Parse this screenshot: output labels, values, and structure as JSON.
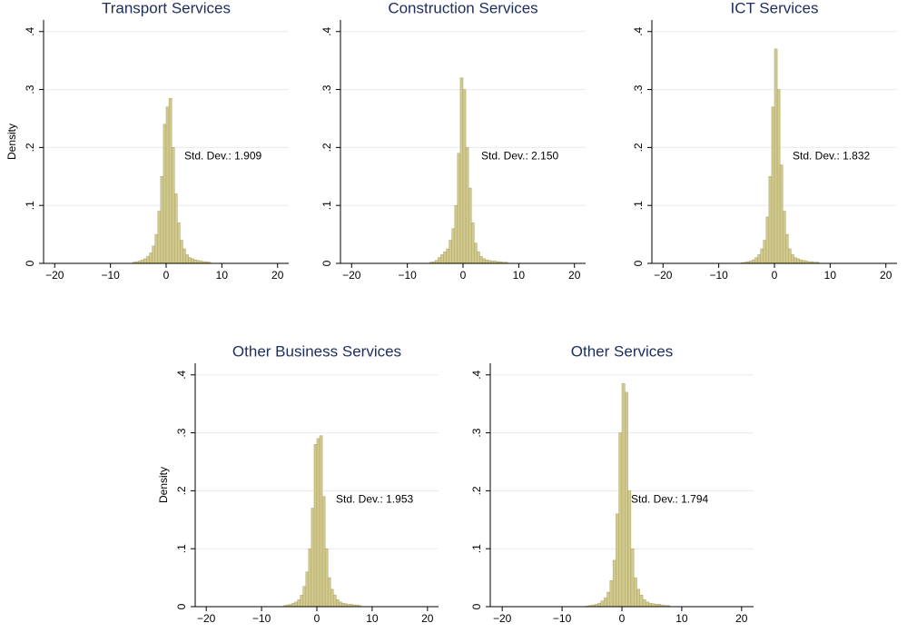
{
  "chart_data": [
    {
      "type": "histogram",
      "title": "Transport Services",
      "ylabel": "Density",
      "annotation": "Std. Dev.: 1.909",
      "color": "#d2ca8c",
      "bins": [
        -6,
        -5.5,
        -5,
        -4.5,
        -4,
        -3.5,
        -3,
        -2.5,
        -2,
        -1.5,
        -1,
        -0.5,
        0,
        0.5,
        1,
        1.5,
        2,
        2.5,
        3,
        3.5,
        4,
        4.5,
        5,
        5.5,
        6,
        6.5,
        7,
        7.5,
        8
      ],
      "values": [
        0.002,
        0.003,
        0.004,
        0.006,
        0.008,
        0.012,
        0.018,
        0.03,
        0.05,
        0.09,
        0.15,
        0.24,
        0.27,
        0.285,
        0.2,
        0.12,
        0.07,
        0.04,
        0.025,
        0.015,
        0.01,
        0.008,
        0.006,
        0.005,
        0.004,
        0.003,
        0.003,
        0.002
      ],
      "xlim": [
        -22,
        22
      ],
      "ylim": [
        0,
        0.42
      ],
      "xticks": [
        {
          "value": -20,
          "label": "−20"
        },
        {
          "value": -10,
          "label": "−10"
        },
        0,
        10,
        20
      ],
      "yticks": [
        0,
        {
          "value": 0.1,
          "label": ".1"
        },
        {
          "value": 0.2,
          "label": ".2"
        },
        {
          "value": 0.3,
          "label": ".3"
        },
        {
          "value": 0.4,
          "label": ".4"
        }
      ],
      "grid": true
    },
    {
      "type": "histogram",
      "title": "Construction Services",
      "annotation": "Std. Dev.: 2.150",
      "color": "#d2ca8c",
      "bins": [
        -6,
        -5.5,
        -5,
        -4.5,
        -4,
        -3.5,
        -3,
        -2.5,
        -2,
        -1.5,
        -1,
        -0.5,
        0,
        0.5,
        1,
        1.5,
        2,
        2.5,
        3,
        3.5,
        4,
        4.5,
        5,
        5.5,
        6,
        6.5,
        7,
        7.5,
        8
      ],
      "values": [
        0.002,
        0.003,
        0.005,
        0.01,
        0.015,
        0.02,
        0.025,
        0.04,
        0.06,
        0.1,
        0.19,
        0.32,
        0.3,
        0.2,
        0.13,
        0.07,
        0.035,
        0.02,
        0.012,
        0.008,
        0.006,
        0.005,
        0.004,
        0.004,
        0.003,
        0.003,
        0.002,
        0.002
      ],
      "xlim": [
        -22,
        22
      ],
      "ylim": [
        0,
        0.42
      ],
      "xticks": [
        {
          "value": -20,
          "label": "−20"
        },
        {
          "value": -10,
          "label": "−10"
        },
        0,
        10,
        20
      ],
      "yticks": [
        0,
        {
          "value": 0.1,
          "label": ".1"
        },
        {
          "value": 0.2,
          "label": ".2"
        },
        {
          "value": 0.3,
          "label": ".3"
        },
        {
          "value": 0.4,
          "label": ".4"
        }
      ],
      "grid": true
    },
    {
      "type": "histogram",
      "title": "ICT Services",
      "annotation": "Std. Dev.: 1.832",
      "color": "#d2ca8c",
      "bins": [
        -6,
        -5.5,
        -5,
        -4.5,
        -4,
        -3.5,
        -3,
        -2.5,
        -2,
        -1.5,
        -1,
        -0.5,
        0,
        0.5,
        1,
        1.5,
        2,
        2.5,
        3,
        3.5,
        4,
        4.5,
        5,
        5.5,
        6,
        6.5,
        7,
        7.5,
        8
      ],
      "values": [
        0.001,
        0.002,
        0.003,
        0.004,
        0.006,
        0.01,
        0.015,
        0.025,
        0.04,
        0.08,
        0.15,
        0.27,
        0.37,
        0.3,
        0.17,
        0.09,
        0.05,
        0.025,
        0.015,
        0.01,
        0.008,
        0.006,
        0.005,
        0.004,
        0.003,
        0.003,
        0.002,
        0.002
      ],
      "xlim": [
        -22,
        22
      ],
      "ylim": [
        0,
        0.42
      ],
      "xticks": [
        {
          "value": -20,
          "label": "−20"
        },
        {
          "value": -10,
          "label": "−10"
        },
        0,
        10,
        20
      ],
      "yticks": [
        0,
        {
          "value": 0.1,
          "label": ".1"
        },
        {
          "value": 0.2,
          "label": ".2"
        },
        {
          "value": 0.3,
          "label": ".3"
        },
        {
          "value": 0.4,
          "label": ".4"
        }
      ],
      "grid": true
    },
    {
      "type": "histogram",
      "title": "Other Business Services",
      "ylabel": "Density",
      "annotation": "Std. Dev.: 1.953",
      "color": "#d2ca8c",
      "bins": [
        -6,
        -5.5,
        -5,
        -4.5,
        -4,
        -3.5,
        -3,
        -2.5,
        -2,
        -1.5,
        -1,
        -0.5,
        0,
        0.5,
        1,
        1.5,
        2,
        2.5,
        3,
        3.5,
        4,
        4.5,
        5,
        5.5,
        6,
        6.5,
        7,
        7.5,
        8
      ],
      "values": [
        0.002,
        0.003,
        0.004,
        0.006,
        0.008,
        0.012,
        0.02,
        0.035,
        0.06,
        0.1,
        0.17,
        0.28,
        0.29,
        0.295,
        0.19,
        0.1,
        0.05,
        0.03,
        0.02,
        0.012,
        0.008,
        0.006,
        0.005,
        0.004,
        0.004,
        0.003,
        0.003,
        0.002
      ],
      "xlim": [
        -22,
        22
      ],
      "ylim": [
        0,
        0.42
      ],
      "xticks": [
        {
          "value": -20,
          "label": "−20"
        },
        {
          "value": -10,
          "label": "−10"
        },
        0,
        10,
        20
      ],
      "yticks": [
        0,
        {
          "value": 0.1,
          "label": ".1"
        },
        {
          "value": 0.2,
          "label": ".2"
        },
        {
          "value": 0.3,
          "label": ".3"
        },
        {
          "value": 0.4,
          "label": ".4"
        }
      ],
      "grid": true
    },
    {
      "type": "histogram",
      "title": "Other Services",
      "annotation": "Std. Dev.: 1.794",
      "color": "#d2ca8c",
      "bins": [
        -6,
        -5.5,
        -5,
        -4.5,
        -4,
        -3.5,
        -3,
        -2.5,
        -2,
        -1.5,
        -1,
        -0.5,
        0,
        0.5,
        1,
        1.5,
        2,
        2.5,
        3,
        3.5,
        4,
        4.5,
        5,
        5.5,
        6,
        6.5,
        7,
        7.5,
        8
      ],
      "values": [
        0.001,
        0.002,
        0.003,
        0.004,
        0.006,
        0.01,
        0.015,
        0.025,
        0.045,
        0.08,
        0.16,
        0.3,
        0.385,
        0.37,
        0.2,
        0.1,
        0.05,
        0.03,
        0.02,
        0.012,
        0.008,
        0.006,
        0.005,
        0.004,
        0.004,
        0.003,
        0.002,
        0.002
      ],
      "xlim": [
        -22,
        22
      ],
      "ylim": [
        0,
        0.42
      ],
      "xticks": [
        {
          "value": -20,
          "label": "−20"
        },
        {
          "value": -10,
          "label": "−10"
        },
        0,
        10,
        20
      ],
      "yticks": [
        0,
        {
          "value": 0.1,
          "label": ".1"
        },
        {
          "value": 0.2,
          "label": ".2"
        },
        {
          "value": 0.3,
          "label": ".3"
        },
        {
          "value": 0.4,
          "label": ".4"
        }
      ],
      "grid": true
    }
  ]
}
